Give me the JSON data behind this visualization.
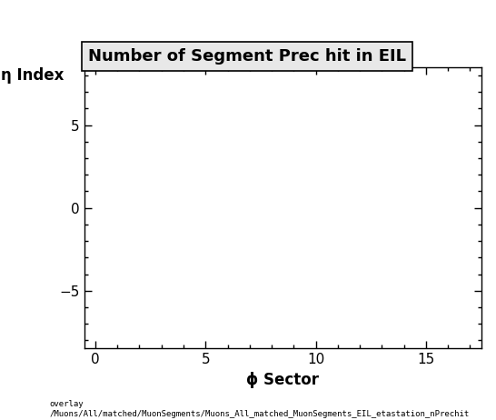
{
  "title": "Number of Segment Prec hit in EIL",
  "xlabel": "ϕ Sector",
  "ylabel": "η Index",
  "xlim": [
    -0.5,
    17.5
  ],
  "ylim": [
    -8.5,
    8.5
  ],
  "xticks": [
    0,
    5,
    10,
    15
  ],
  "yticks": [
    -5,
    0,
    5
  ],
  "background_color": "#ffffff",
  "plot_bg_color": "#ffffff",
  "title_fontsize": 13,
  "axis_label_fontsize": 12,
  "tick_fontsize": 11,
  "footer_text": "overlay\n/Muons/All/matched/MuonSegments/Muons_All_matched_MuonSegments_EIL_etastation_nPrechit",
  "title_box_color": "#e8e8e8"
}
